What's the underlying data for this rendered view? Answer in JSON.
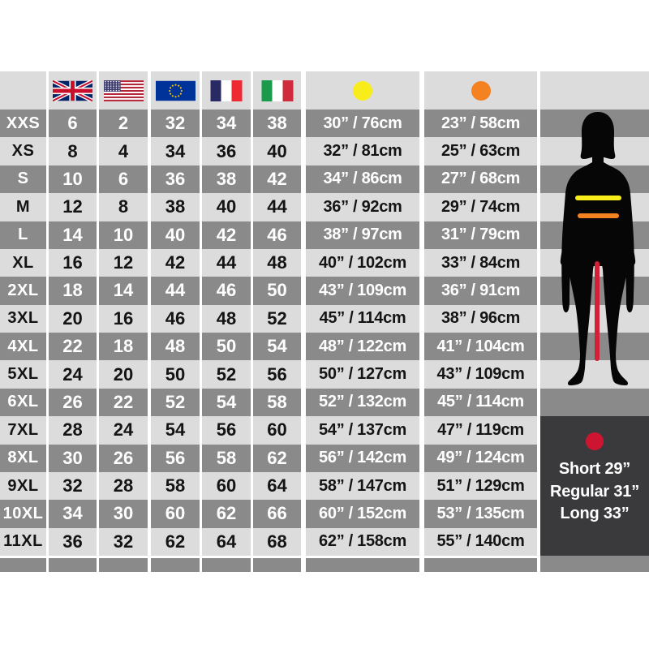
{
  "chart_data": {
    "type": "table",
    "header": {
      "size_column_label": "",
      "flag_icons": [
        "flag-uk",
        "flag-us",
        "flag-eu",
        "flag-france",
        "flag-italy"
      ],
      "chest_marker": {
        "icon": "chest-dot-icon",
        "color": "#f8ec1b"
      },
      "waist_marker": {
        "icon": "waist-dot-icon",
        "color": "#f58220"
      }
    },
    "columns": [
      "size",
      "uk",
      "us",
      "eu",
      "fr",
      "it",
      "chest",
      "waist"
    ],
    "rows": [
      {
        "size": "XXS",
        "uk": "6",
        "us": "2",
        "eu": "32",
        "fr": "34",
        "it": "38",
        "chest": "30” / 76cm",
        "waist": "23” / 58cm"
      },
      {
        "size": "XS",
        "uk": "8",
        "us": "4",
        "eu": "34",
        "fr": "36",
        "it": "40",
        "chest": "32” / 81cm",
        "waist": "25” / 63cm"
      },
      {
        "size": "S",
        "uk": "10",
        "us": "6",
        "eu": "36",
        "fr": "38",
        "it": "42",
        "chest": "34” / 86cm",
        "waist": "27” / 68cm"
      },
      {
        "size": "M",
        "uk": "12",
        "us": "8",
        "eu": "38",
        "fr": "40",
        "it": "44",
        "chest": "36” / 92cm",
        "waist": "29” / 74cm"
      },
      {
        "size": "L",
        "uk": "14",
        "us": "10",
        "eu": "40",
        "fr": "42",
        "it": "46",
        "chest": "38” / 97cm",
        "waist": "31” / 79cm"
      },
      {
        "size": "XL",
        "uk": "16",
        "us": "12",
        "eu": "42",
        "fr": "44",
        "it": "48",
        "chest": "40” / 102cm",
        "waist": "33” / 84cm"
      },
      {
        "size": "2XL",
        "uk": "18",
        "us": "14",
        "eu": "44",
        "fr": "46",
        "it": "50",
        "chest": "43” / 109cm",
        "waist": "36” / 91cm"
      },
      {
        "size": "3XL",
        "uk": "20",
        "us": "16",
        "eu": "46",
        "fr": "48",
        "it": "52",
        "chest": "45” / 114cm",
        "waist": "38” / 96cm"
      },
      {
        "size": "4XL",
        "uk": "22",
        "us": "18",
        "eu": "48",
        "fr": "50",
        "it": "54",
        "chest": "48” / 122cm",
        "waist": "41” / 104cm"
      },
      {
        "size": "5XL",
        "uk": "24",
        "us": "20",
        "eu": "50",
        "fr": "52",
        "it": "56",
        "chest": "50” / 127cm",
        "waist": "43” / 109cm"
      },
      {
        "size": "6XL",
        "uk": "26",
        "us": "22",
        "eu": "52",
        "fr": "54",
        "it": "58",
        "chest": "52” / 132cm",
        "waist": "45” / 114cm"
      },
      {
        "size": "7XL",
        "uk": "28",
        "us": "24",
        "eu": "54",
        "fr": "56",
        "it": "60",
        "chest": "54” / 137cm",
        "waist": "47” / 119cm"
      },
      {
        "size": "8XL",
        "uk": "30",
        "us": "26",
        "eu": "56",
        "fr": "58",
        "it": "62",
        "chest": "56” / 142cm",
        "waist": "49” / 124cm"
      },
      {
        "size": "9XL",
        "uk": "32",
        "us": "28",
        "eu": "58",
        "fr": "60",
        "it": "64",
        "chest": "58” / 147cm",
        "waist": "51” / 129cm"
      },
      {
        "size": "10XL",
        "uk": "34",
        "us": "30",
        "eu": "60",
        "fr": "62",
        "it": "66",
        "chest": "60” / 152cm",
        "waist": "53” / 135cm"
      },
      {
        "size": "11XL",
        "uk": "36",
        "us": "32",
        "eu": "62",
        "fr": "64",
        "it": "68",
        "chest": "62” / 158cm",
        "waist": "55” / 140cm"
      }
    ]
  },
  "leg_box": {
    "dot_icon": {
      "name": "leg-length-dot-icon",
      "color": "#cd1532"
    },
    "lines": [
      "Short 29”",
      "Regular 31”",
      "Long 33”"
    ]
  },
  "figure": {
    "chest_line_color": "#f8ec1b",
    "waist_line_color": "#f58220",
    "inseam_line_color": "#d41f38"
  },
  "colors": {
    "row_dark": "#8a8a8b",
    "row_light": "#dcdcdd",
    "box_bg": "#3a3a3c",
    "text_dark": "#141414",
    "text_light": "#ffffff"
  }
}
